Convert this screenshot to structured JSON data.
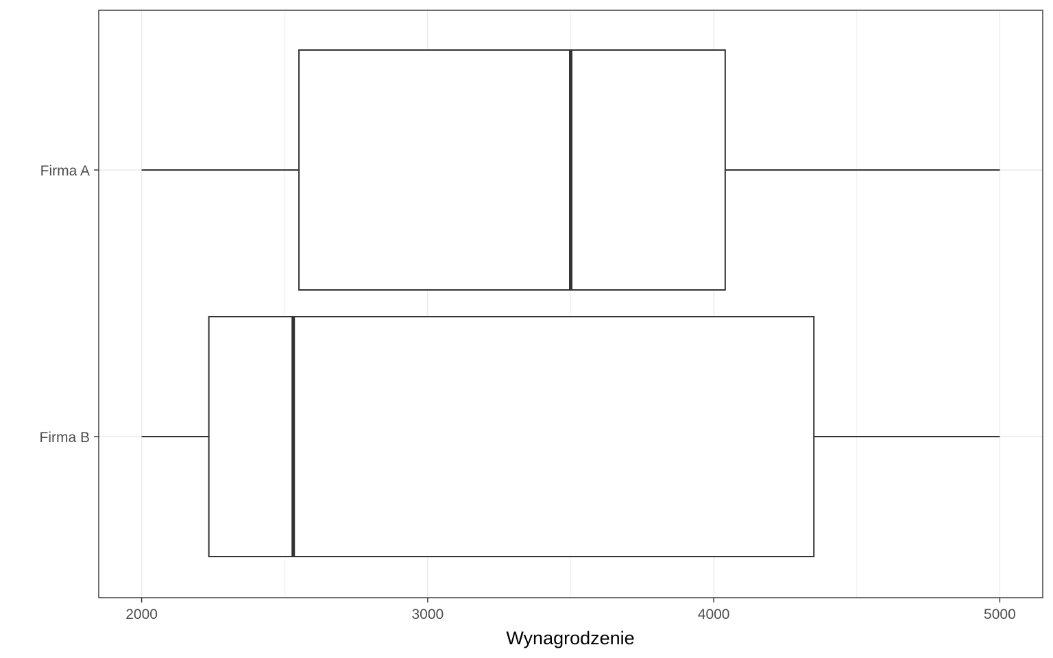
{
  "chart_data": {
    "type": "boxplot",
    "orientation": "horizontal",
    "title": "",
    "xlabel": "Wynagrodzenie",
    "ylabel": "",
    "xlim": [
      1850,
      5150
    ],
    "x_ticks": [
      2000,
      3000,
      4000,
      5000
    ],
    "x_minor_ticks": [
      2500,
      3500,
      4500
    ],
    "grid": true,
    "legend": "none",
    "categories": [
      "Firma A",
      "Firma B"
    ],
    "series": [
      {
        "category": "Firma A",
        "min": 2000,
        "q1": 2550,
        "median": 3500,
        "q3": 4040,
        "max": 5000
      },
      {
        "category": "Firma B",
        "min": 2000,
        "q1": 2235,
        "median": 2530,
        "q3": 4350,
        "max": 5000
      }
    ]
  },
  "colors": {
    "background": "#ffffff",
    "panel_border": "#333333",
    "grid": "#ebebeb",
    "box_stroke": "#333333",
    "box_fill": "#ffffff",
    "tick_text": "#4d4d4d",
    "axis_title": "#000000"
  }
}
